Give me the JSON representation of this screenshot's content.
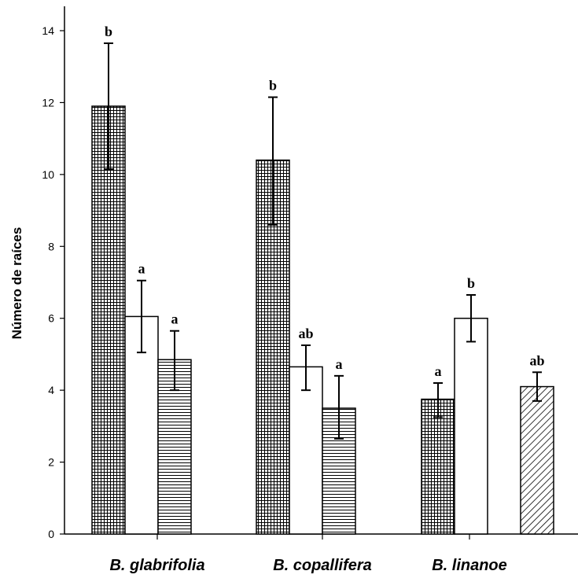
{
  "chart_data": {
    "type": "bar",
    "title": "",
    "xlabel": "",
    "ylabel": "Número de raíces",
    "ylim": [
      0,
      14.5
    ],
    "yticks": [
      0,
      2,
      4,
      6,
      8,
      10,
      12,
      14
    ],
    "grid": false,
    "legend": "none",
    "groups": [
      {
        "label": "B. glabrifolia",
        "bars": [
          {
            "pattern": "grid",
            "value": 11.9,
            "err_low": 10.15,
            "err_high": 13.65,
            "sig": "b"
          },
          {
            "pattern": "none",
            "value": 6.05,
            "err_low": 5.05,
            "err_high": 7.05,
            "sig": "a"
          },
          {
            "pattern": "horizontal",
            "value": 4.85,
            "err_low": 4.0,
            "err_high": 5.65,
            "sig": "a"
          }
        ]
      },
      {
        "label": "B. copallifera",
        "bars": [
          {
            "pattern": "grid",
            "value": 10.4,
            "err_low": 8.6,
            "err_high": 12.15,
            "sig": "b"
          },
          {
            "pattern": "none",
            "value": 4.65,
            "err_low": 4.0,
            "err_high": 5.25,
            "sig": "ab"
          },
          {
            "pattern": "horizontal",
            "value": 3.5,
            "err_low": 2.65,
            "err_high": 4.4,
            "sig": "a"
          }
        ]
      },
      {
        "label": "B. linanoe",
        "bars": [
          {
            "pattern": "grid",
            "value": 3.75,
            "err_low": 3.25,
            "err_high": 4.2,
            "sig": "a"
          },
          {
            "pattern": "none",
            "value": 6.0,
            "err_low": 5.35,
            "err_high": 6.65,
            "sig": "b"
          },
          {
            "pattern": "diagonal",
            "value": 4.1,
            "err_low": 3.7,
            "err_high": 4.5,
            "sig": "ab"
          }
        ]
      }
    ]
  },
  "colors": {
    "ink": "#000000",
    "background": "#ffffff"
  }
}
